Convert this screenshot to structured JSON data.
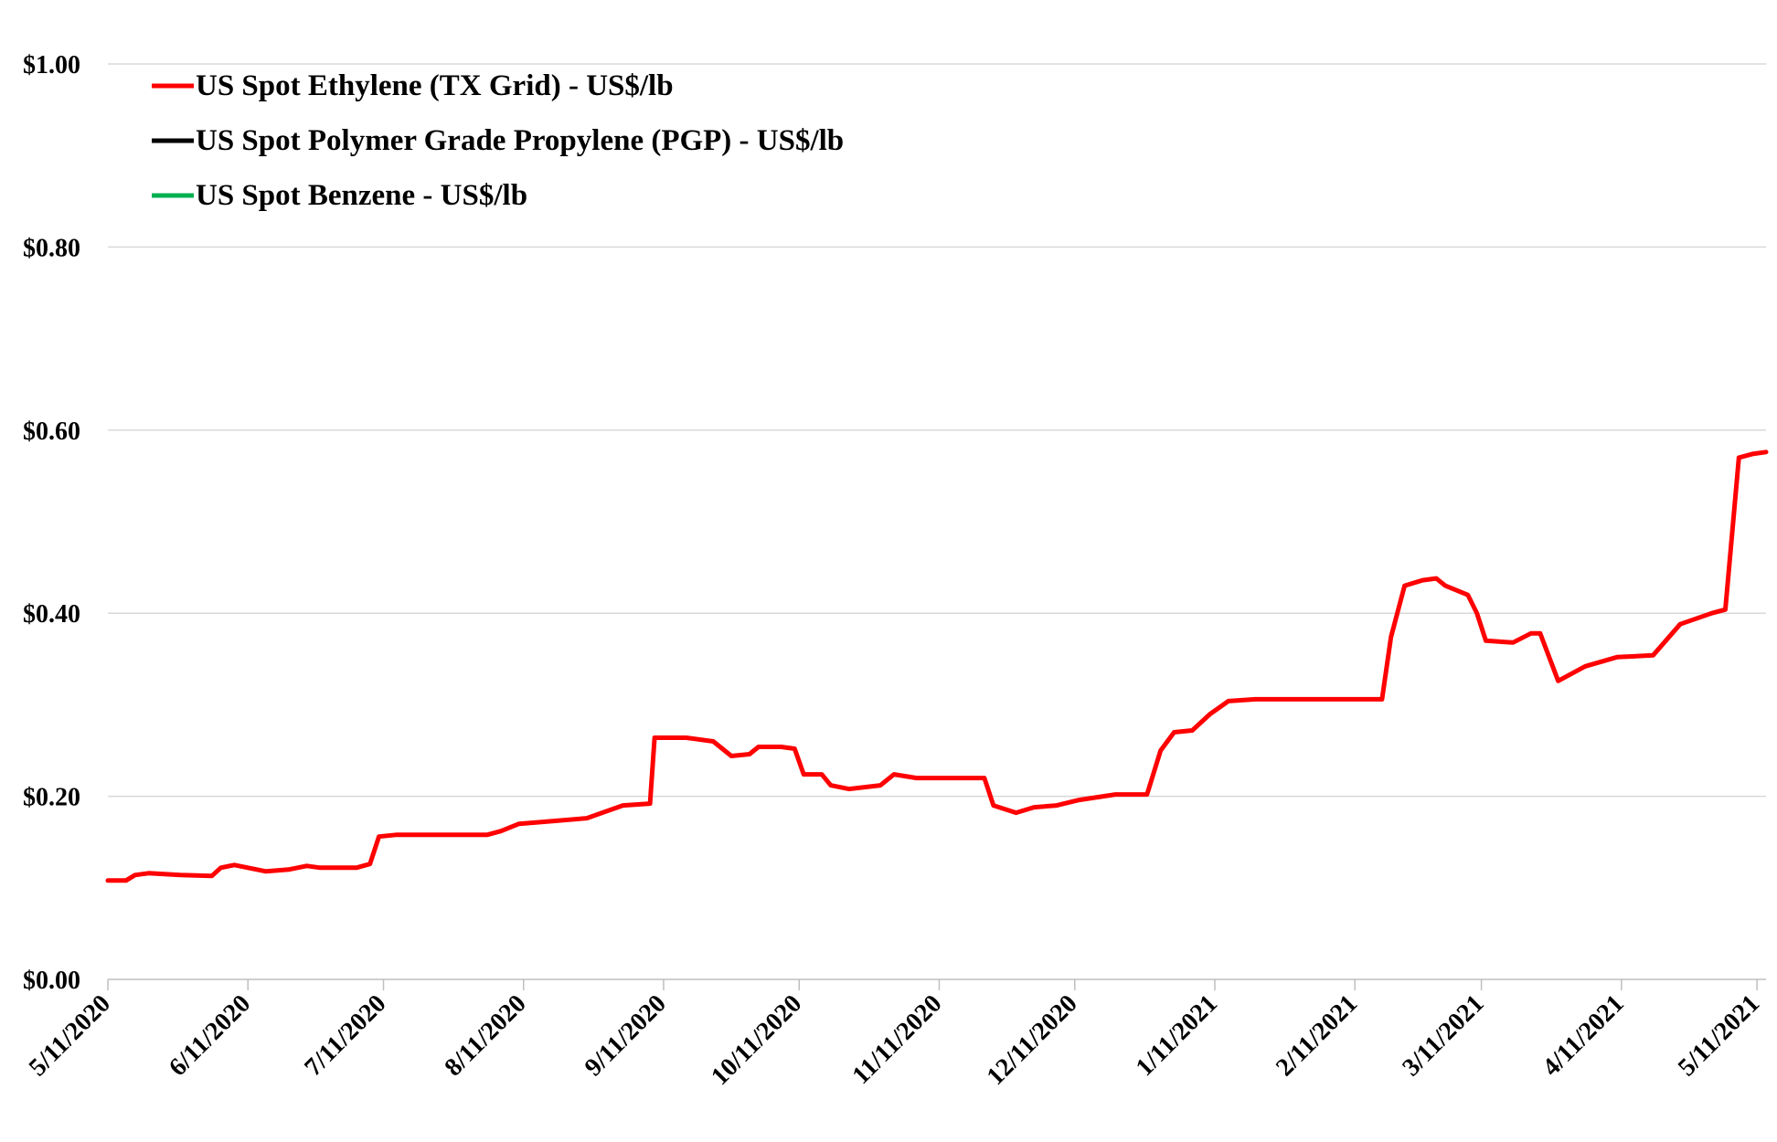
{
  "chart_data": {
    "type": "line",
    "title": "",
    "xlabel": "",
    "ylabel": "",
    "ylim": [
      0,
      1.0
    ],
    "y_ticks": [
      {
        "value": 0.0,
        "label": "$0.00"
      },
      {
        "value": 0.2,
        "label": "$0.20"
      },
      {
        "value": 0.4,
        "label": "$0.40"
      },
      {
        "value": 0.6,
        "label": "$0.60"
      },
      {
        "value": 0.8,
        "label": "$0.80"
      },
      {
        "value": 1.0,
        "label": "$1.00"
      }
    ],
    "x_range": [
      "2020-05-11",
      "2021-05-13"
    ],
    "x_ticks": [
      {
        "date": "2020-05-11",
        "label": "5/11/2020"
      },
      {
        "date": "2020-06-11",
        "label": "6/11/2020"
      },
      {
        "date": "2020-07-11",
        "label": "7/11/2020"
      },
      {
        "date": "2020-08-11",
        "label": "8/11/2020"
      },
      {
        "date": "2020-09-11",
        "label": "9/11/2020"
      },
      {
        "date": "2020-10-11",
        "label": "10/11/2020"
      },
      {
        "date": "2020-11-11",
        "label": "11/11/2020"
      },
      {
        "date": "2020-12-11",
        "label": "12/11/2020"
      },
      {
        "date": "2021-01-11",
        "label": "1/11/2021"
      },
      {
        "date": "2021-02-11",
        "label": "2/11/2021"
      },
      {
        "date": "2021-03-11",
        "label": "3/11/2021"
      },
      {
        "date": "2021-04-11",
        "label": "4/11/2021"
      },
      {
        "date": "2021-05-11",
        "label": "5/11/2021"
      }
    ],
    "grid": true,
    "legend_position": "top-left",
    "series": [
      {
        "name": "US Spot Ethylene (TX Grid) - US$/lb",
        "color": "#ff0000",
        "points": [
          [
            "2020-05-11",
            0.108
          ],
          [
            "2020-05-15",
            0.108
          ],
          [
            "2020-05-17",
            0.114
          ],
          [
            "2020-05-20",
            0.116
          ],
          [
            "2020-05-27",
            0.114
          ],
          [
            "2020-06-03",
            0.113
          ],
          [
            "2020-06-05",
            0.122
          ],
          [
            "2020-06-08",
            0.125
          ],
          [
            "2020-06-11",
            0.122
          ],
          [
            "2020-06-15",
            0.118
          ],
          [
            "2020-06-20",
            0.12
          ],
          [
            "2020-06-24",
            0.124
          ],
          [
            "2020-06-27",
            0.122
          ],
          [
            "2020-07-05",
            0.122
          ],
          [
            "2020-07-08",
            0.126
          ],
          [
            "2020-07-10",
            0.156
          ],
          [
            "2020-07-14",
            0.158
          ],
          [
            "2020-07-20",
            0.158
          ],
          [
            "2020-08-03",
            0.158
          ],
          [
            "2020-08-06",
            0.162
          ],
          [
            "2020-08-10",
            0.17
          ],
          [
            "2020-08-15",
            0.172
          ],
          [
            "2020-08-25",
            0.176
          ],
          [
            "2020-09-02",
            0.19
          ],
          [
            "2020-09-08",
            0.192
          ],
          [
            "2020-09-09",
            0.264
          ],
          [
            "2020-09-16",
            0.264
          ],
          [
            "2020-09-22",
            0.26
          ],
          [
            "2020-09-26",
            0.244
          ],
          [
            "2020-09-30",
            0.246
          ],
          [
            "2020-10-02",
            0.254
          ],
          [
            "2020-10-07",
            0.254
          ],
          [
            "2020-10-10",
            0.252
          ],
          [
            "2020-10-12",
            0.224
          ],
          [
            "2020-10-16",
            0.224
          ],
          [
            "2020-10-18",
            0.212
          ],
          [
            "2020-10-22",
            0.208
          ],
          [
            "2020-10-29",
            0.212
          ],
          [
            "2020-11-01",
            0.224
          ],
          [
            "2020-11-06",
            0.22
          ],
          [
            "2020-11-15",
            0.22
          ],
          [
            "2020-11-21",
            0.22
          ],
          [
            "2020-11-23",
            0.19
          ],
          [
            "2020-11-28",
            0.182
          ],
          [
            "2020-12-02",
            0.188
          ],
          [
            "2020-12-07",
            0.19
          ],
          [
            "2020-12-12",
            0.196
          ],
          [
            "2020-12-20",
            0.202
          ],
          [
            "2020-12-27",
            0.202
          ],
          [
            "2020-12-30",
            0.25
          ],
          [
            "2021-01-02",
            0.27
          ],
          [
            "2021-01-06",
            0.272
          ],
          [
            "2021-01-10",
            0.29
          ],
          [
            "2021-01-14",
            0.304
          ],
          [
            "2021-01-20",
            0.306
          ],
          [
            "2021-02-10",
            0.306
          ],
          [
            "2021-02-17",
            0.306
          ],
          [
            "2021-02-19",
            0.374
          ],
          [
            "2021-02-22",
            0.43
          ],
          [
            "2021-02-26",
            0.436
          ],
          [
            "2021-03-01",
            0.438
          ],
          [
            "2021-03-03",
            0.43
          ],
          [
            "2021-03-08",
            0.42
          ],
          [
            "2021-03-10",
            0.4
          ],
          [
            "2021-03-12",
            0.37
          ],
          [
            "2021-03-18",
            0.368
          ],
          [
            "2021-03-22",
            0.378
          ],
          [
            "2021-03-24",
            0.378
          ],
          [
            "2021-03-28",
            0.326
          ],
          [
            "2021-04-03",
            0.342
          ],
          [
            "2021-04-10",
            0.352
          ],
          [
            "2021-04-18",
            0.354
          ],
          [
            "2021-04-24",
            0.388
          ],
          [
            "2021-05-01",
            0.4
          ],
          [
            "2021-05-04",
            0.404
          ],
          [
            "2021-05-07",
            0.57
          ],
          [
            "2021-05-10",
            0.574
          ],
          [
            "2021-05-13",
            0.576
          ]
        ]
      },
      {
        "name": "US Spot Polymer Grade Propylene (PGP) - US$/lb",
        "color": "#000000",
        "points": []
      },
      {
        "name": "US Spot Benzene - US$/lb",
        "color": "#00b050",
        "points": []
      }
    ]
  }
}
